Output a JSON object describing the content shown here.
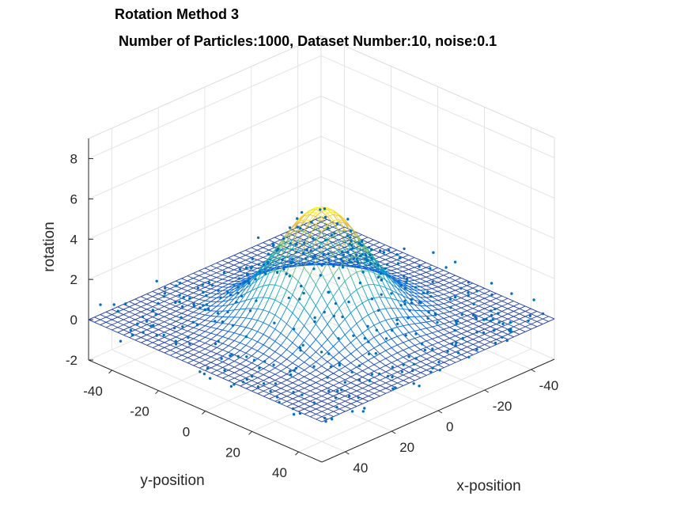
{
  "chart_data": {
    "type": "surface-scatter-3d",
    "title": "Rotation Method 3",
    "subtitle": "Number of Particles:1000, Dataset Number:10, noise:0.1",
    "xlabel": "x-position",
    "ylabel": "y-position",
    "zlabel": "rotation",
    "xlim": [
      -50,
      50
    ],
    "ylim": [
      -50,
      50
    ],
    "zlim": [
      -2,
      9
    ],
    "xticks": [
      -40,
      -20,
      0,
      20,
      40
    ],
    "yticks": [
      -40,
      -20,
      0,
      20,
      40
    ],
    "zticks": [
      -2,
      0,
      2,
      4,
      6,
      8
    ],
    "x_tick_labels": [
      "-40",
      "-20",
      "0",
      "20",
      "40"
    ],
    "y_tick_labels": [
      "-40",
      "-20",
      "0",
      "20",
      "40"
    ],
    "z_tick_labels": [
      "-2",
      "0",
      "2",
      "4",
      "6",
      "8"
    ],
    "grid": true,
    "surface": {
      "form": "gaussian",
      "amplitude": 5.5,
      "center": [
        0,
        0
      ],
      "sigma": 14,
      "grid_range": [
        -50,
        50
      ],
      "grid_points": 41,
      "colormap": "parula"
    },
    "scatter": {
      "count": 1000,
      "noise": 0.1,
      "color": "#0072bd"
    }
  }
}
